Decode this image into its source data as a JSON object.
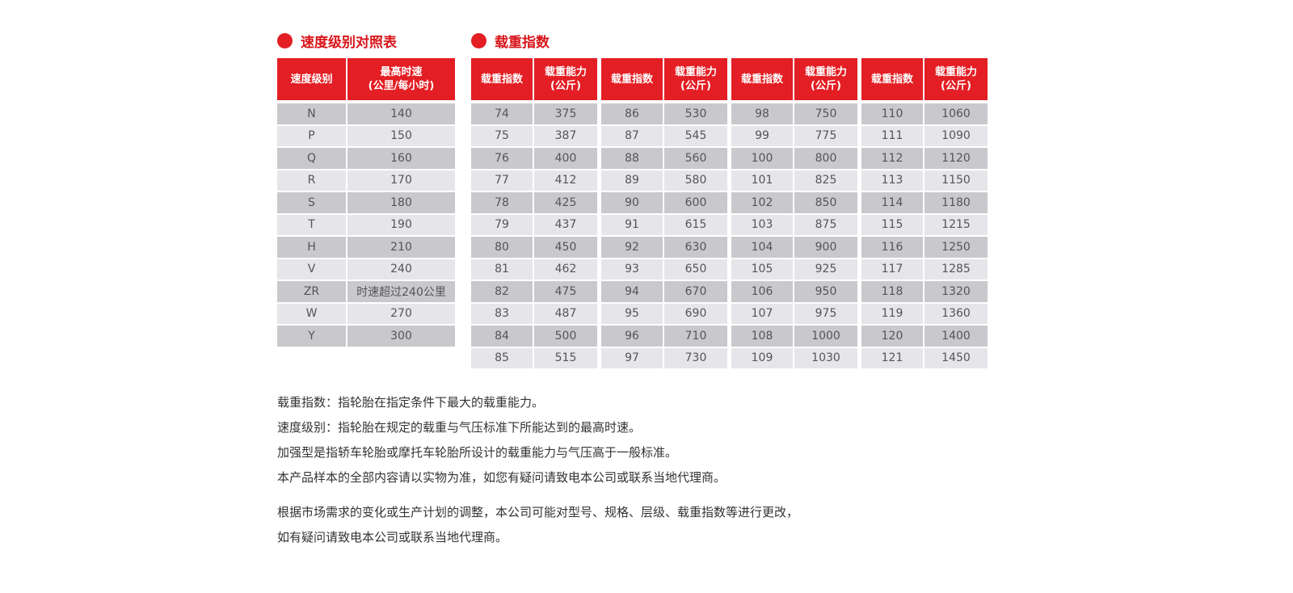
{
  "speed": {
    "title": "速度级别对照表",
    "headers": [
      "速度级别",
      "最高时速",
      "(公里/每小时)"
    ],
    "rows": [
      [
        "N",
        "140"
      ],
      [
        "P",
        "150"
      ],
      [
        "Q",
        "160"
      ],
      [
        "R",
        "170"
      ],
      [
        "S",
        "180"
      ],
      [
        "T",
        "190"
      ],
      [
        "H",
        "210"
      ],
      [
        "V",
        "240"
      ],
      [
        "ZR",
        "时速超过240公里"
      ],
      [
        "W",
        "270"
      ],
      [
        "Y",
        "300"
      ]
    ]
  },
  "load": {
    "title": "载重指数",
    "headers": [
      "载重指数",
      "载重能力",
      "(公斤)"
    ],
    "groups": [
      [
        [
          "74",
          "375"
        ],
        [
          "75",
          "387"
        ],
        [
          "76",
          "400"
        ],
        [
          "77",
          "412"
        ],
        [
          "78",
          "425"
        ],
        [
          "79",
          "437"
        ],
        [
          "80",
          "450"
        ],
        [
          "81",
          "462"
        ],
        [
          "82",
          "475"
        ],
        [
          "83",
          "487"
        ],
        [
          "84",
          "500"
        ],
        [
          "85",
          "515"
        ]
      ],
      [
        [
          "86",
          "530"
        ],
        [
          "87",
          "545"
        ],
        [
          "88",
          "560"
        ],
        [
          "89",
          "580"
        ],
        [
          "90",
          "600"
        ],
        [
          "91",
          "615"
        ],
        [
          "92",
          "630"
        ],
        [
          "93",
          "650"
        ],
        [
          "94",
          "670"
        ],
        [
          "95",
          "690"
        ],
        [
          "96",
          "710"
        ],
        [
          "97",
          "730"
        ]
      ],
      [
        [
          "98",
          "750"
        ],
        [
          "99",
          "775"
        ],
        [
          "100",
          "800"
        ],
        [
          "101",
          "825"
        ],
        [
          "102",
          "850"
        ],
        [
          "103",
          "875"
        ],
        [
          "104",
          "900"
        ],
        [
          "105",
          "925"
        ],
        [
          "106",
          "950"
        ],
        [
          "107",
          "975"
        ],
        [
          "108",
          "1000"
        ],
        [
          "109",
          "1030"
        ]
      ],
      [
        [
          "110",
          "1060"
        ],
        [
          "111",
          "1090"
        ],
        [
          "112",
          "1120"
        ],
        [
          "113",
          "1150"
        ],
        [
          "114",
          "1180"
        ],
        [
          "115",
          "1215"
        ],
        [
          "116",
          "1250"
        ],
        [
          "117",
          "1285"
        ],
        [
          "118",
          "1320"
        ],
        [
          "119",
          "1360"
        ],
        [
          "120",
          "1400"
        ],
        [
          "121",
          "1450"
        ]
      ]
    ]
  },
  "notes": [
    "载重指数：指轮胎在指定条件下最大的载重能力。",
    "速度级别：指轮胎在规定的载重与气压标准下所能达到的最高时速。",
    "加强型是指轿车轮胎或摩托车轮胎所设计的载重能力与气压高于一般标准。",
    "本产品样本的全部内容请以实物为准，如您有疑问请致电本公司或联系当地代理商。",
    "根据市场需求的变化或生产计划的调整，本公司可能对型号、规格、层级、载重指数等进行更改，",
    "如有疑问请致电本公司或联系当地代理商。"
  ],
  "colors": {
    "accent": "#e31e24",
    "row_dark": "#c9c8cc",
    "row_light": "#e6e5e9"
  }
}
